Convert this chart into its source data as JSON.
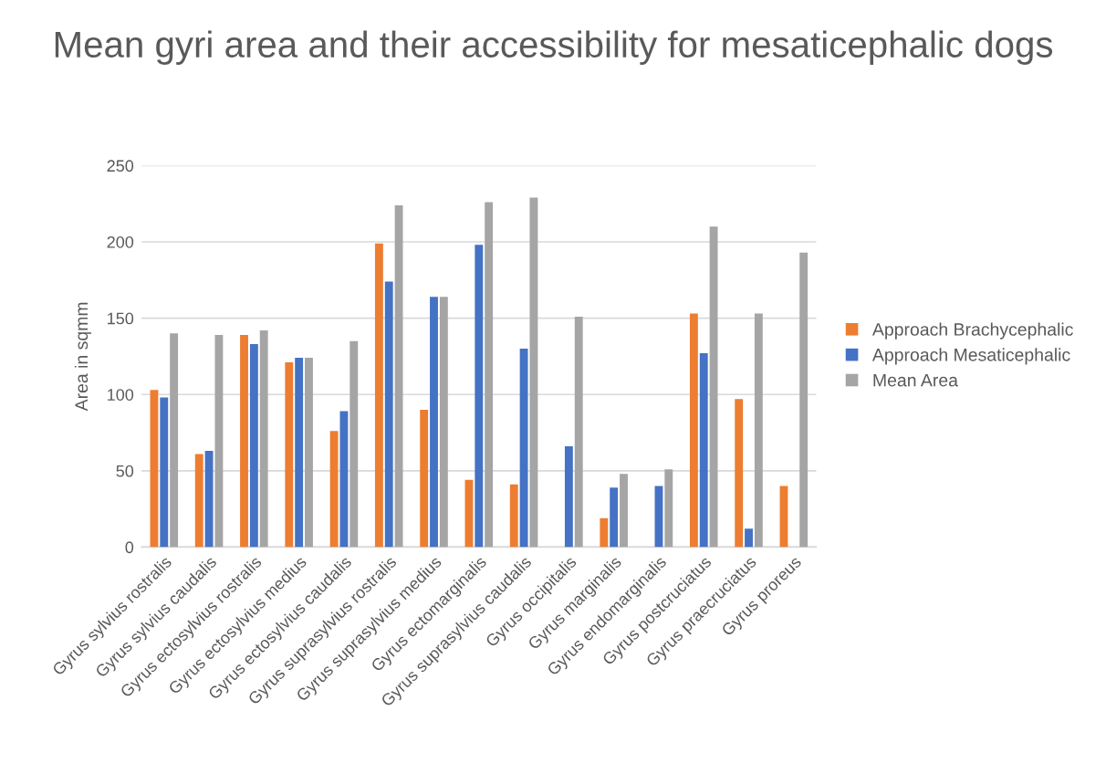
{
  "chart_data": {
    "type": "bar",
    "title": "Mean gyri area and their accessibility for mesaticephalic dogs",
    "ylabel": "Area in sqmm",
    "categories": [
      "Gyrus sylvius rostralis",
      "Gyrus sylvius caudalis",
      "Gyrus ectosylvius rostralis",
      "Gyrus ectosylvius medius",
      "Gyrus ectosylvius caudalis",
      "Gyrus suprasylvius rostralis",
      "Gyrus suprasylvius medius",
      "Gyrus ectomarginalis",
      "Gyrus suprasylvius caudalis",
      "Gyrus occipitalis",
      "Gyrus marginalis",
      "Gyrus endomarginalis",
      "Gyrus postcruciatus",
      "Gyrus praecruciatus",
      "Gyrus proreus"
    ],
    "series": [
      {
        "name": "Approach Brachycephalic",
        "color": "#ed7d31",
        "values": [
          103,
          61,
          139,
          121,
          76,
          199,
          90,
          44,
          41,
          null,
          19,
          null,
          153,
          97,
          40
        ]
      },
      {
        "name": "Approach Mesaticephalic",
        "color": "#4472c4",
        "values": [
          98,
          63,
          133,
          124,
          89,
          174,
          164,
          198,
          130,
          66,
          39,
          40,
          127,
          12,
          null
        ]
      },
      {
        "name": "Mean Area",
        "color": "#a5a5a5",
        "values": [
          140,
          139,
          142,
          124,
          135,
          224,
          164,
          226,
          229,
          151,
          48,
          51,
          210,
          153,
          193
        ]
      }
    ],
    "ylim": [
      0,
      250
    ],
    "yticks": [
      0,
      50,
      100,
      150,
      200,
      250
    ],
    "grid": "y",
    "legend": "right"
  }
}
